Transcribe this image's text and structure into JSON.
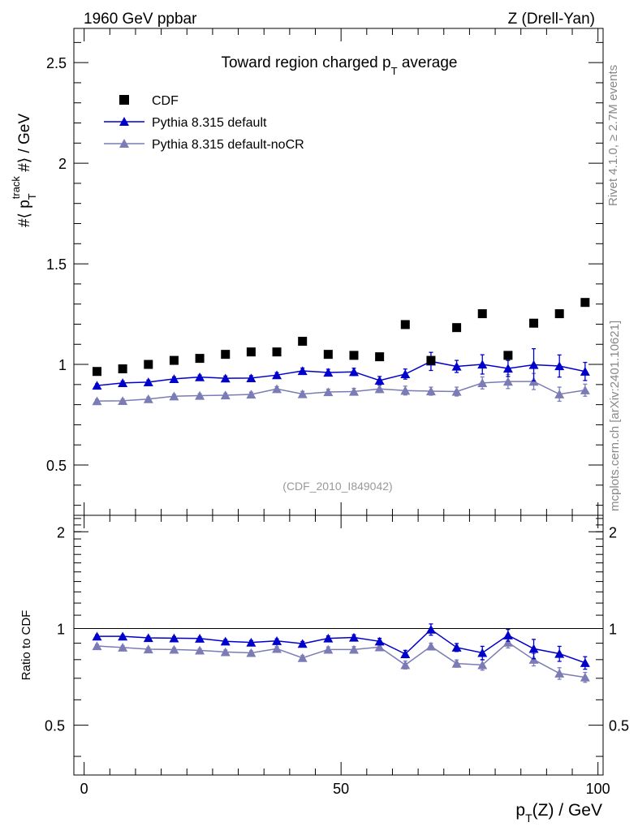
{
  "header": {
    "energy": "1960 GeV ppbar",
    "process": "Z (Drell-Yan)"
  },
  "side": {
    "rivet": "Rivet 4.1.0, ≥ 2.7M events",
    "mcplots": "mcplots.cern.ch [arXiv:2401.10621]"
  },
  "chart_data": {
    "type": "scatter",
    "title_main": "Toward region charged p",
    "title_sub": "T",
    "title_end": " average",
    "analysis": "(CDF_2010_I849042)",
    "ylabel": "#⟨ p_T^track #⟩ / GeV",
    "ylabel_pre": "#⟨ p",
    "ylabel_sup": "track",
    "ylabel_sub": "T",
    "ylabel_post": " #⟩ / GeV",
    "xlabel_pre": "p",
    "xlabel_sub": "T",
    "xlabel_post": "(Z)  / GeV",
    "ratio_ylabel": "Ratio to CDF",
    "xlim": [
      -2,
      101
    ],
    "main_ylim": [
      0.25,
      2.67
    ],
    "ratio_ylim": [
      0.35,
      2.25
    ],
    "main_yticks": [
      "0.5",
      "1",
      "1.5",
      "2",
      "2.5"
    ],
    "main_ytick_values": [
      0.5,
      1,
      1.5,
      2,
      2.5
    ],
    "ratio_yticks": [
      "0.5",
      "1",
      "2"
    ],
    "ratio_ytick_values": [
      0.5,
      1,
      2
    ],
    "xticks": [
      "0",
      "50",
      "100"
    ],
    "xtick_values": [
      0,
      50,
      100
    ],
    "x": [
      2.5,
      7.5,
      12.5,
      17.5,
      22.5,
      27.5,
      32.5,
      37.5,
      42.5,
      47.5,
      52.5,
      57.5,
      62.5,
      67.5,
      72.5,
      77.5,
      82.5,
      87.5,
      92.5,
      97.5
    ],
    "series": [
      {
        "name": "CDF",
        "color": "#000000",
        "marker": "square",
        "values": [
          0.965,
          0.978,
          1.0,
          1.02,
          1.03,
          1.05,
          1.062,
          1.062,
          1.115,
          1.05,
          1.045,
          1.038,
          1.198,
          1.02,
          1.183,
          1.252,
          1.045,
          1.205,
          1.252,
          1.308
        ]
      },
      {
        "name": "Pythia 8.315 default",
        "color": "#0000cc",
        "marker": "triangle",
        "values": [
          0.895,
          0.908,
          0.912,
          0.928,
          0.937,
          0.931,
          0.932,
          0.947,
          0.968,
          0.96,
          0.963,
          0.92,
          0.952,
          1.015,
          0.99,
          1.0,
          0.98,
          0.998,
          0.992,
          0.965
        ],
        "errors": [
          0.008,
          0.009,
          0.01,
          0.01,
          0.01,
          0.011,
          0.012,
          0.012,
          0.014,
          0.016,
          0.018,
          0.02,
          0.025,
          0.045,
          0.03,
          0.048,
          0.04,
          0.08,
          0.055,
          0.045
        ],
        "ratio": [
          0.945,
          0.945,
          0.935,
          0.933,
          0.931,
          0.912,
          0.905,
          0.915,
          0.897,
          0.932,
          0.938,
          0.912,
          0.833,
          0.993,
          0.873,
          0.84,
          0.953,
          0.865,
          0.835,
          0.782
        ],
        "ratio_errors": [
          0.01,
          0.01,
          0.01,
          0.01,
          0.01,
          0.012,
          0.012,
          0.013,
          0.014,
          0.016,
          0.018,
          0.02,
          0.022,
          0.04,
          0.025,
          0.04,
          0.04,
          0.06,
          0.045,
          0.035
        ]
      },
      {
        "name": "Pythia 8.315 default-noCR",
        "color": "#7b7bb5",
        "marker": "triangle",
        "values": [
          0.818,
          0.819,
          0.828,
          0.842,
          0.845,
          0.847,
          0.851,
          0.878,
          0.853,
          0.863,
          0.865,
          0.878,
          0.87,
          0.867,
          0.865,
          0.908,
          0.915,
          0.915,
          0.852,
          0.872
        ],
        "errors": [
          0.008,
          0.008,
          0.009,
          0.009,
          0.009,
          0.01,
          0.011,
          0.012,
          0.013,
          0.014,
          0.016,
          0.018,
          0.022,
          0.02,
          0.022,
          0.03,
          0.035,
          0.04,
          0.035,
          0.03
        ],
        "ratio": [
          0.882,
          0.873,
          0.862,
          0.86,
          0.855,
          0.845,
          0.84,
          0.865,
          0.81,
          0.86,
          0.86,
          0.875,
          0.77,
          0.88,
          0.778,
          0.77,
          0.905,
          0.8,
          0.725,
          0.705
        ],
        "ratio_errors": [
          0.01,
          0.01,
          0.01,
          0.01,
          0.01,
          0.012,
          0.012,
          0.013,
          0.014,
          0.016,
          0.018,
          0.02,
          0.022,
          0.02,
          0.02,
          0.028,
          0.035,
          0.035,
          0.03,
          0.025
        ]
      }
    ]
  }
}
